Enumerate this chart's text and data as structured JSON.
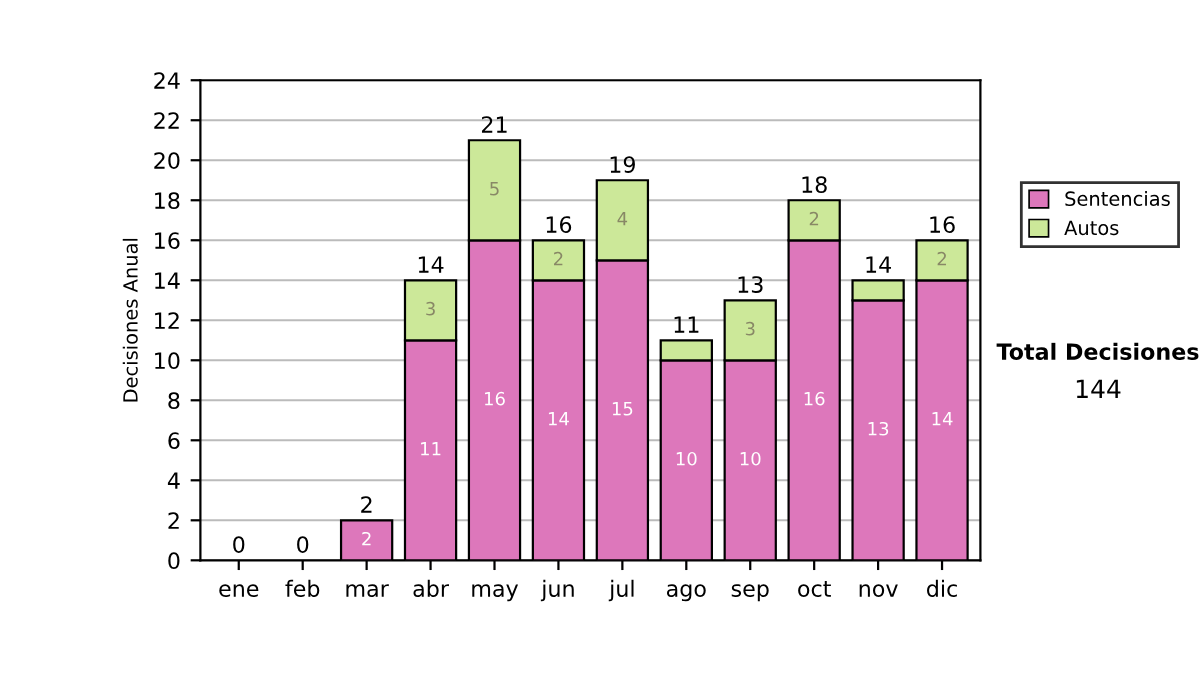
{
  "chart_data": {
    "type": "bar",
    "stacked": true,
    "ylabel": "Decisiones Anual",
    "categories": [
      "ene",
      "feb",
      "mar",
      "abr",
      "may",
      "jun",
      "jul",
      "ago",
      "sep",
      "oct",
      "nov",
      "dic"
    ],
    "series": [
      {
        "name": "Sentencias",
        "color": "#dd77bb",
        "values": [
          0,
          0,
          2,
          11,
          16,
          14,
          15,
          10,
          10,
          16,
          13,
          14
        ],
        "value_labels": [
          null,
          null,
          "2",
          "11",
          "16",
          "14",
          "15",
          "10",
          "10",
          "16",
          "13",
          "14"
        ]
      },
      {
        "name": "Autos",
        "color": "#cce899",
        "values": [
          0,
          0,
          0,
          3,
          5,
          2,
          4,
          1,
          3,
          2,
          1,
          2
        ],
        "value_labels": [
          null,
          null,
          null,
          "3",
          "5",
          "2",
          "4",
          null,
          "3",
          "2",
          null,
          "2"
        ]
      }
    ],
    "totals": [
      "0",
      "0",
      "2",
      "14",
      "21",
      "16",
      "19",
      "11",
      "13",
      "18",
      "14",
      "16"
    ],
    "ylim": [
      0,
      24
    ],
    "yticks": [
      0,
      2,
      4,
      6,
      8,
      10,
      12,
      14,
      16,
      18,
      20,
      22,
      24
    ],
    "grid": "y",
    "legend": "right",
    "annotations": [
      "Total Decisiones",
      "144"
    ]
  }
}
